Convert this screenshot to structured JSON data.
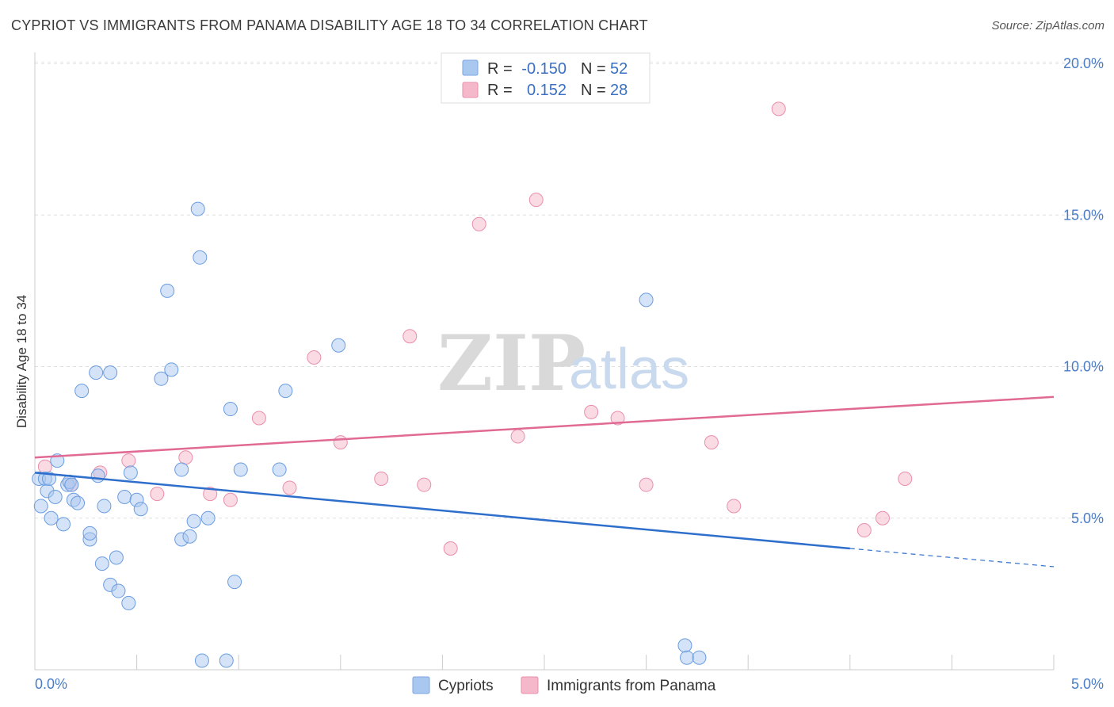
{
  "header": {
    "title": "CYPRIOT VS IMMIGRANTS FROM PANAMA DISABILITY AGE 18 TO 34 CORRELATION CHART",
    "source": "Source: ZipAtlas.com"
  },
  "watermark": {
    "zip": "ZIP",
    "atlas": "atlas"
  },
  "legend": {
    "rows": [
      {
        "r_label": "R =",
        "r_value": "-0.150",
        "n_label": "N =",
        "n_value": "52",
        "color": "#a9c8f0"
      },
      {
        "r_label": "R =",
        "r_value": "0.152",
        "n_label": "N =",
        "n_value": "28",
        "color": "#f5b8ca"
      }
    ]
  },
  "bottom_legend": [
    {
      "label": "Cypriots",
      "color": "#a9c8f0"
    },
    {
      "label": "Immigrants from Panama",
      "color": "#f5b8ca"
    }
  ],
  "chart_data": {
    "type": "scatter",
    "title": "CYPRIOT VS IMMIGRANTS FROM PANAMA DISABILITY AGE 18 TO 34 CORRELATION CHART",
    "xlabel": "",
    "ylabel": "Disability Age 18 to 34",
    "xlim": [
      0,
      5
    ],
    "ylim": [
      0,
      20
    ],
    "x_tick_labels": [
      "0.0%",
      "5.0%"
    ],
    "y_ticks": [
      5,
      10,
      15,
      20
    ],
    "y_tick_labels": [
      "5.0%",
      "10.0%",
      "15.0%",
      "20.0%"
    ],
    "grid": true,
    "legend_position": "top-center",
    "colors": {
      "cypriots": "#6b9de0",
      "panama": "#ee8fac",
      "cypriots_line": "#2f6fcc",
      "panama_line": "#e06a93"
    },
    "series": [
      {
        "name": "Cypriots",
        "trend": {
          "x": [
            0.0,
            4.0
          ],
          "y": [
            6.5,
            4.0
          ],
          "dashed_to": [
            5.0,
            3.4
          ]
        },
        "points": [
          [
            0.02,
            6.3
          ],
          [
            0.03,
            5.4
          ],
          [
            0.05,
            6.3
          ],
          [
            0.06,
            5.9
          ],
          [
            0.08,
            5.0
          ],
          [
            0.1,
            5.7
          ],
          [
            0.14,
            4.8
          ],
          [
            0.11,
            6.9
          ],
          [
            0.16,
            6.1
          ],
          [
            0.17,
            6.2
          ],
          [
            0.19,
            5.6
          ],
          [
            0.21,
            5.5
          ],
          [
            0.18,
            6.1
          ],
          [
            0.23,
            9.2
          ],
          [
            0.27,
            4.3
          ],
          [
            0.27,
            4.5
          ],
          [
            0.3,
            9.8
          ],
          [
            0.31,
            6.4
          ],
          [
            0.33,
            3.5
          ],
          [
            0.34,
            5.4
          ],
          [
            0.37,
            2.8
          ],
          [
            0.37,
            9.8
          ],
          [
            0.4,
            3.7
          ],
          [
            0.41,
            2.6
          ],
          [
            0.44,
            5.7
          ],
          [
            0.46,
            2.2
          ],
          [
            0.47,
            6.5
          ],
          [
            0.5,
            5.6
          ],
          [
            0.52,
            5.3
          ],
          [
            0.62,
            9.6
          ],
          [
            0.65,
            12.5
          ],
          [
            0.67,
            9.9
          ],
          [
            0.72,
            6.6
          ],
          [
            0.72,
            4.3
          ],
          [
            0.76,
            4.4
          ],
          [
            0.78,
            4.9
          ],
          [
            0.8,
            15.2
          ],
          [
            0.81,
            13.6
          ],
          [
            0.82,
            0.3
          ],
          [
            0.85,
            5.0
          ],
          [
            0.94,
            0.3
          ],
          [
            0.96,
            8.6
          ],
          [
            0.98,
            2.9
          ],
          [
            1.01,
            6.6
          ],
          [
            1.2,
            6.6
          ],
          [
            1.23,
            9.2
          ],
          [
            1.49,
            10.7
          ],
          [
            3.0,
            12.2
          ],
          [
            3.19,
            0.8
          ],
          [
            3.2,
            0.4
          ],
          [
            3.26,
            0.4
          ],
          [
            0.07,
            6.3
          ]
        ]
      },
      {
        "name": "Immigrants from Panama",
        "trend": {
          "x": [
            0.0,
            5.0
          ],
          "y": [
            7.0,
            9.0
          ]
        },
        "points": [
          [
            0.05,
            6.7
          ],
          [
            0.18,
            6.1
          ],
          [
            0.32,
            6.5
          ],
          [
            0.46,
            6.9
          ],
          [
            0.6,
            5.8
          ],
          [
            0.74,
            7.0
          ],
          [
            0.86,
            5.8
          ],
          [
            0.96,
            5.6
          ],
          [
            1.1,
            8.3
          ],
          [
            1.25,
            6.0
          ],
          [
            1.37,
            10.3
          ],
          [
            1.5,
            7.5
          ],
          [
            1.7,
            6.3
          ],
          [
            1.84,
            11.0
          ],
          [
            1.91,
            6.1
          ],
          [
            2.04,
            4.0
          ],
          [
            2.18,
            14.7
          ],
          [
            2.37,
            7.7
          ],
          [
            2.46,
            15.5
          ],
          [
            2.73,
            8.5
          ],
          [
            2.86,
            8.3
          ],
          [
            3.0,
            6.1
          ],
          [
            3.32,
            7.5
          ],
          [
            3.43,
            5.4
          ],
          [
            3.65,
            18.5
          ],
          [
            4.07,
            4.6
          ],
          [
            4.16,
            5.0
          ],
          [
            4.27,
            6.3
          ]
        ]
      }
    ]
  }
}
